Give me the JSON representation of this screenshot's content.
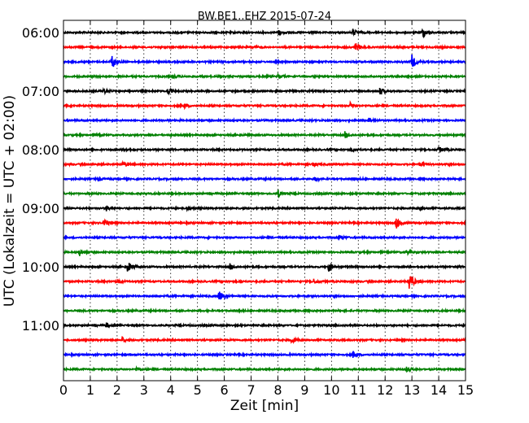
{
  "chart_data": {
    "type": "line",
    "title": "BW.BE1..EHZ 2015-07-24",
    "xlabel": "Zeit  [min]",
    "ylabel": "UTC (Lokalzeit = UTC + 02:00)",
    "xlim": [
      0,
      15
    ],
    "x_ticks": [
      "0",
      "1",
      "2",
      "3",
      "4",
      "5",
      "6",
      "7",
      "8",
      "9",
      "10",
      "11",
      "12",
      "13",
      "14",
      "15"
    ],
    "y_tick_labels": [
      "06:00",
      "07:00",
      "08:00",
      "09:00",
      "10:00",
      "11:00"
    ],
    "grid": true,
    "minutes_per_trace": 15,
    "trace_colors": [
      "#000000",
      "#ff0000",
      "#0000ff",
      "#008000"
    ],
    "traces": [
      {
        "start": "06:00",
        "color": "#000000",
        "events": [
          {
            "t": 8.0,
            "amp": 0.35
          },
          {
            "t": 10.8,
            "amp": 0.45
          },
          {
            "t": 13.4,
            "amp": 0.75
          }
        ]
      },
      {
        "start": "06:15",
        "color": "#ff0000",
        "events": [
          {
            "t": 7.0,
            "amp": 0.2
          },
          {
            "t": 10.9,
            "amp": 0.55
          }
        ]
      },
      {
        "start": "06:30",
        "color": "#0000ff",
        "events": [
          {
            "t": 1.8,
            "amp": 1.0
          },
          {
            "t": 13.0,
            "amp": 0.95
          }
        ]
      },
      {
        "start": "06:45",
        "color": "#008000",
        "events": [
          {
            "t": 4.1,
            "amp": 0.3
          },
          {
            "t": 8.0,
            "amp": 0.25
          }
        ]
      },
      {
        "start": "07:00",
        "color": "#000000",
        "events": [
          {
            "t": 1.5,
            "amp": 0.3
          },
          {
            "t": 3.9,
            "amp": 0.4
          },
          {
            "t": 11.8,
            "amp": 0.45
          }
        ]
      },
      {
        "start": "07:15",
        "color": "#ff0000",
        "events": [
          {
            "t": 4.5,
            "amp": 0.3
          },
          {
            "t": 10.7,
            "amp": 0.35
          }
        ]
      },
      {
        "start": "07:30",
        "color": "#0000ff",
        "events": [
          {
            "t": 11.4,
            "amp": 0.3
          }
        ]
      },
      {
        "start": "07:45",
        "color": "#008000",
        "events": [
          {
            "t": 1.1,
            "amp": 0.2
          },
          {
            "t": 10.5,
            "amp": 0.45
          }
        ]
      },
      {
        "start": "08:00",
        "color": "#000000",
        "events": [
          {
            "t": 2.3,
            "amp": 0.2
          },
          {
            "t": 10.8,
            "amp": 0.25
          },
          {
            "t": 14.0,
            "amp": 0.45
          }
        ]
      },
      {
        "start": "08:15",
        "color": "#ff0000",
        "events": [
          {
            "t": 2.2,
            "amp": 0.3
          },
          {
            "t": 9.3,
            "amp": 0.25
          },
          {
            "t": 13.3,
            "amp": 0.3
          }
        ]
      },
      {
        "start": "08:30",
        "color": "#0000ff",
        "events": [
          {
            "t": 1.3,
            "amp": 0.2
          },
          {
            "t": 9.4,
            "amp": 0.3
          },
          {
            "t": 10.8,
            "amp": 0.25
          }
        ]
      },
      {
        "start": "08:45",
        "color": "#008000",
        "events": [
          {
            "t": 8.0,
            "amp": 0.45
          }
        ]
      },
      {
        "start": "09:00",
        "color": "#000000",
        "events": [
          {
            "t": 1.6,
            "amp": 0.35
          },
          {
            "t": 4.6,
            "amp": 0.2
          },
          {
            "t": 13.3,
            "amp": 0.2
          }
        ]
      },
      {
        "start": "09:15",
        "color": "#ff0000",
        "events": [
          {
            "t": 1.5,
            "amp": 0.75
          },
          {
            "t": 12.4,
            "amp": 0.85
          }
        ]
      },
      {
        "start": "09:30",
        "color": "#0000ff",
        "events": [
          {
            "t": 10.3,
            "amp": 0.3
          }
        ]
      },
      {
        "start": "09:45",
        "color": "#008000",
        "events": [
          {
            "t": 0.6,
            "amp": 0.5
          },
          {
            "t": 12.8,
            "amp": 0.3
          }
        ]
      },
      {
        "start": "10:00",
        "color": "#000000",
        "events": [
          {
            "t": 2.4,
            "amp": 0.8
          },
          {
            "t": 6.2,
            "amp": 0.45
          },
          {
            "t": 9.9,
            "amp": 0.65
          }
        ]
      },
      {
        "start": "10:15",
        "color": "#ff0000",
        "events": [
          {
            "t": 2.0,
            "amp": 0.3
          },
          {
            "t": 9.3,
            "amp": 0.4
          },
          {
            "t": 12.9,
            "amp": 1.3
          }
        ]
      },
      {
        "start": "10:30",
        "color": "#0000ff",
        "events": [
          {
            "t": 5.8,
            "amp": 0.8
          }
        ]
      },
      {
        "start": "10:45",
        "color": "#008000",
        "events": []
      },
      {
        "start": "11:00",
        "color": "#000000",
        "events": [
          {
            "t": 1.6,
            "amp": 0.3
          }
        ]
      },
      {
        "start": "11:15",
        "color": "#ff0000",
        "events": [
          {
            "t": 2.2,
            "amp": 0.3
          },
          {
            "t": 8.5,
            "amp": 0.4
          },
          {
            "t": 15.0,
            "amp": 0.2
          }
        ]
      },
      {
        "start": "11:30",
        "color": "#0000ff",
        "events": [
          {
            "t": 10.8,
            "amp": 0.45
          }
        ]
      },
      {
        "start": "11:45",
        "color": "#008000",
        "events": [
          {
            "t": 2.7,
            "amp": 0.2
          },
          {
            "t": 12.8,
            "amp": 0.3
          }
        ]
      }
    ]
  }
}
